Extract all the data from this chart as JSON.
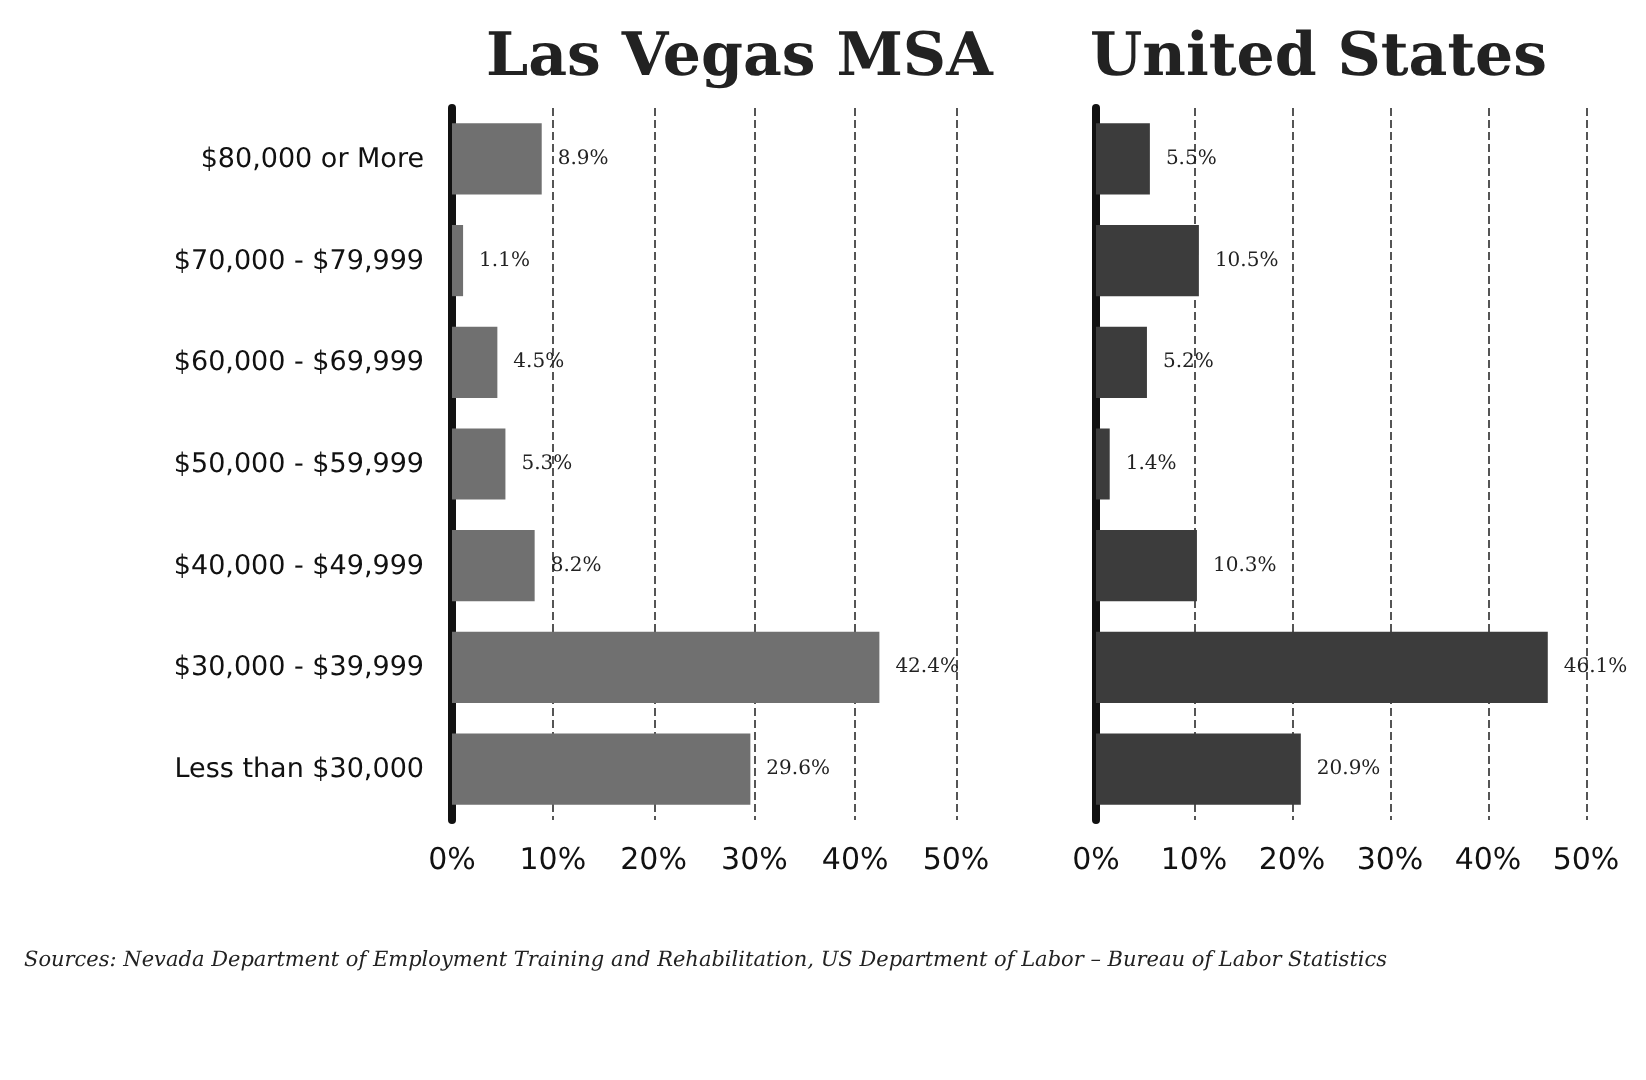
{
  "chart_data": [
    {
      "type": "bar",
      "orientation": "horizontal",
      "title": "Las Vegas MSA",
      "categories": [
        "$80,000 or More",
        "$70,000 - $79,999",
        "$60,000 - $69,999",
        "$50,000 - $59,999",
        "$40,000 - $49,999",
        "$30,000 - $39,999",
        "Less than $30,000"
      ],
      "series": [
        {
          "color": "#707070",
          "values": [
            8.9,
            1.1,
            4.5,
            5.3,
            8.2,
            42.4,
            29.6
          ],
          "value_labels": [
            "8.9%",
            "1.1%",
            "4.5%",
            "5.3%",
            "8.2%",
            "42.4%",
            "29.6%"
          ]
        }
      ],
      "xlim": [
        0,
        50
      ],
      "xticks": [
        {
          "value": 0,
          "label": "0%"
        },
        {
          "value": 10,
          "label": "10%"
        },
        {
          "value": 20,
          "label": "20%"
        },
        {
          "value": 30,
          "label": "30%"
        },
        {
          "value": 40,
          "label": "40%"
        },
        {
          "value": 50,
          "label": "50%"
        }
      ],
      "grid": "x",
      "annotations": [
        "Sources: Nevada Department of Employment Training and Rehabilitation, US Department of Labor – Bureau of Labor Statistics"
      ]
    },
    {
      "type": "bar",
      "orientation": "horizontal",
      "title": "United States",
      "categories": [
        null,
        null,
        null,
        null,
        null,
        null,
        null
      ],
      "series": [
        {
          "color": "#3c3c3c",
          "values": [
            5.5,
            10.5,
            5.2,
            1.4,
            10.3,
            46.1,
            20.9
          ],
          "value_labels": [
            "5.5%",
            "10.5%",
            "5.2%",
            "1.4%",
            "10.3%",
            "46.1%",
            "20.9%"
          ]
        }
      ],
      "xlim": [
        0,
        50
      ],
      "xticks": [
        {
          "value": 0,
          "label": "0%"
        },
        {
          "value": 10,
          "label": "10%"
        },
        {
          "value": 20,
          "label": "20%"
        },
        {
          "value": 30,
          "label": "30%"
        },
        {
          "value": 40,
          "label": "40%"
        },
        {
          "value": 50,
          "label": "50%"
        }
      ],
      "grid": "x",
      "tick_labels": "x"
    }
  ]
}
